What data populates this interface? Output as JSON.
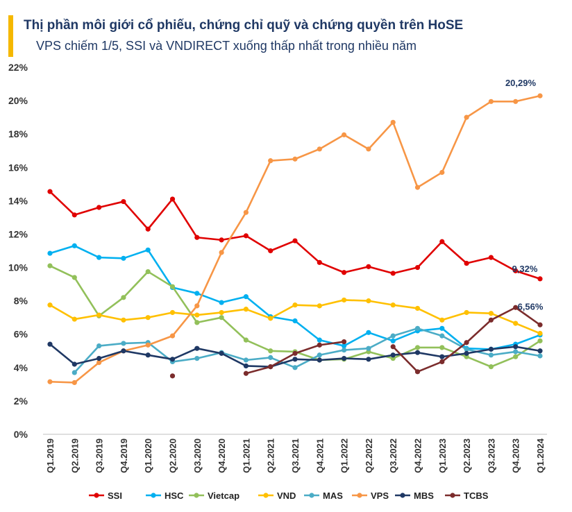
{
  "header": {
    "title": "Thị phần môi giới cổ phiếu, chứng chỉ quỹ và chứng quyền trên HoSE",
    "subtitle": "VPS chiếm 1/5, SSI và VNDIRECT xuống thấp nhất trong nhiều năm",
    "accent_color": "#f5b800"
  },
  "chart_data": {
    "type": "line",
    "title": "Thị phần môi giới cổ phiếu, chứng chỉ quỹ và chứng quyền trên HoSE",
    "xlabel": "",
    "ylabel": "",
    "ylim": [
      0,
      22
    ],
    "y_ticks": [
      "0%",
      "2%",
      "4%",
      "6%",
      "8%",
      "10%",
      "12%",
      "14%",
      "16%",
      "18%",
      "20%",
      "22%"
    ],
    "categories": [
      "Q1.2019",
      "Q2.2019",
      "Q3.2019",
      "Q4.2019",
      "Q1.2020",
      "Q2.2020",
      "Q3.2020",
      "Q4.2020",
      "Q1.2021",
      "Q2.2021",
      "Q3.2021",
      "Q4.2021",
      "Q1.2022",
      "Q2.2022",
      "Q3.2022",
      "Q4.2022",
      "Q1.2023",
      "Q2.2023",
      "Q3.2023",
      "Q4.2023",
      "Q1.2024"
    ],
    "legend_position": "bottom",
    "series": [
      {
        "name": "SSI",
        "color": "#e00000",
        "values": [
          14.55,
          13.15,
          13.6,
          13.95,
          12.3,
          14.1,
          11.8,
          11.65,
          11.9,
          11.0,
          11.6,
          10.3,
          9.7,
          10.05,
          9.65,
          10.0,
          11.55,
          10.25,
          10.6,
          9.8,
          9.32
        ]
      },
      {
        "name": "HSC",
        "color": "#00b0f0",
        "values": [
          10.85,
          11.3,
          10.6,
          10.55,
          11.05,
          8.8,
          8.45,
          7.9,
          8.25,
          7.05,
          6.8,
          5.65,
          5.3,
          6.1,
          5.6,
          6.2,
          6.35,
          5.15,
          5.1,
          5.4,
          5.95
        ]
      },
      {
        "name": "Vietcap",
        "color": "#92c05a",
        "values": [
          10.1,
          9.4,
          7.1,
          8.2,
          9.75,
          8.85,
          6.7,
          7.0,
          5.65,
          5.0,
          4.95,
          4.45,
          4.5,
          4.95,
          4.55,
          5.2,
          5.2,
          4.65,
          4.05,
          4.65,
          5.6
        ]
      },
      {
        "name": "VND",
        "color": "#ffc000",
        "values": [
          7.75,
          6.9,
          7.15,
          6.85,
          7.0,
          7.3,
          7.15,
          7.3,
          7.5,
          6.95,
          7.75,
          7.7,
          8.05,
          8.0,
          7.75,
          7.55,
          6.85,
          7.3,
          7.25,
          6.65,
          6.05
        ]
      },
      {
        "name": "MAS",
        "color": "#4bacc6",
        "values": [
          null,
          3.7,
          5.3,
          5.45,
          5.5,
          4.35,
          4.55,
          4.9,
          4.45,
          4.6,
          4.0,
          4.75,
          5.05,
          5.15,
          5.9,
          6.35,
          5.9,
          5.1,
          4.75,
          4.95,
          4.7
        ]
      },
      {
        "name": "VPS",
        "color": "#f79646",
        "values": [
          3.15,
          3.1,
          4.3,
          5.0,
          5.35,
          5.9,
          7.7,
          10.9,
          13.3,
          16.4,
          16.5,
          17.1,
          17.95,
          17.1,
          18.7,
          14.8,
          15.7,
          19.0,
          19.95,
          19.95,
          20.29
        ]
      },
      {
        "name": "MBS",
        "color": "#1f3864",
        "values": [
          5.4,
          4.2,
          4.55,
          5.0,
          4.75,
          4.5,
          5.15,
          4.85,
          4.1,
          4.05,
          4.5,
          4.45,
          4.55,
          4.5,
          4.75,
          4.9,
          4.65,
          4.85,
          5.1,
          5.25,
          5.0
        ]
      },
      {
        "name": "TCBS",
        "color": "#7b2c2c",
        "values": [
          null,
          null,
          null,
          null,
          null,
          3.5,
          null,
          null,
          3.65,
          4.05,
          4.85,
          5.35,
          5.55,
          null,
          5.25,
          3.75,
          4.35,
          5.5,
          6.85,
          7.6,
          6.56
        ]
      }
    ],
    "annotations": [
      {
        "series": "VPS",
        "index": 20,
        "text": "20,29%"
      },
      {
        "series": "SSI",
        "index": 20,
        "text": "9,32%"
      },
      {
        "series": "TCBS",
        "index": 20,
        "text": "6,56%"
      }
    ]
  }
}
